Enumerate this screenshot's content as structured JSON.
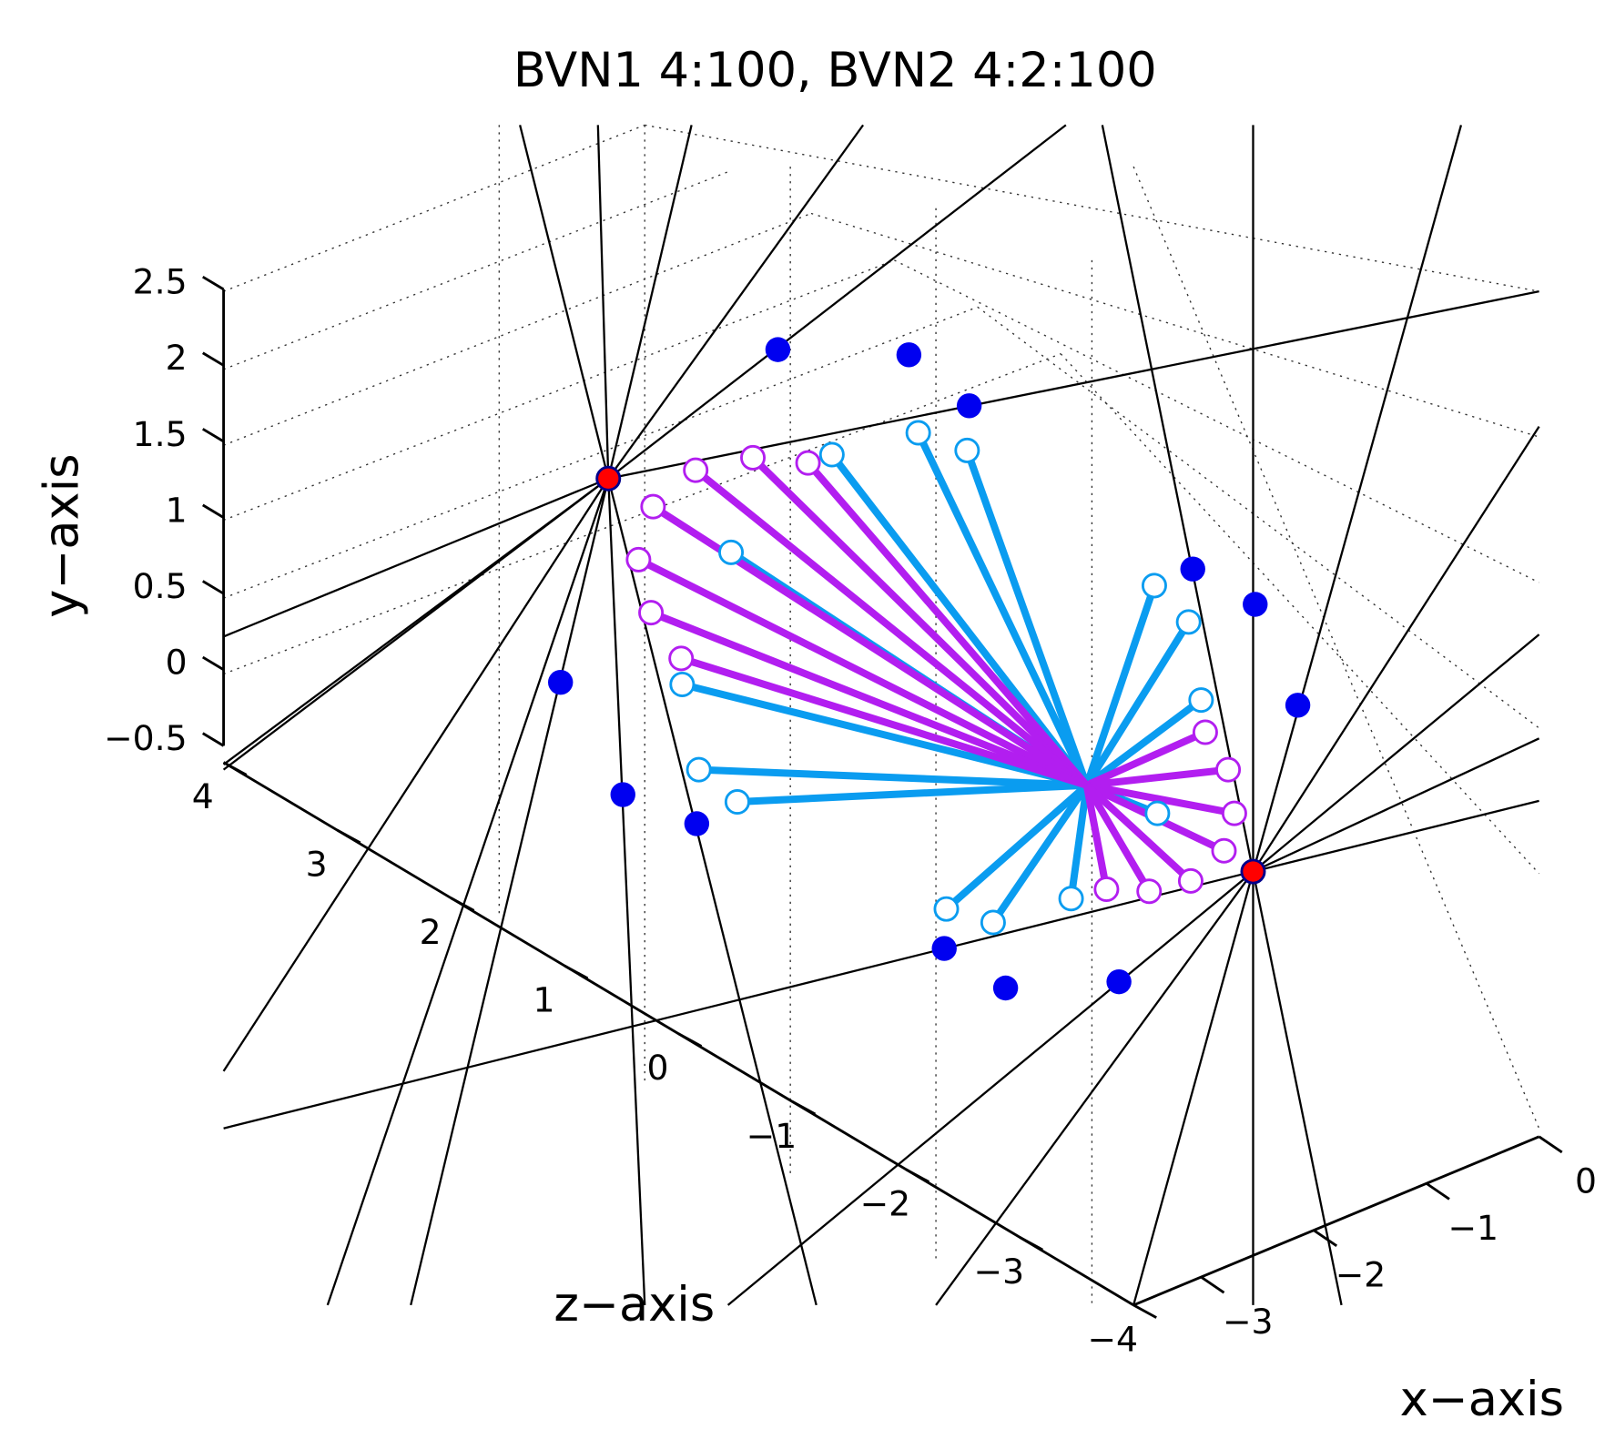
{
  "chart_data": {
    "type": "line3d",
    "title": "BVN1 4:100, BVN2 4:2:100",
    "xlabel": "x−axis",
    "ylabel": "y−axis",
    "zlabel": "z−axis",
    "xlim": [
      -3.6,
      0
    ],
    "xticks": [
      {
        "value": -3,
        "label": "−3"
      },
      {
        "value": -2,
        "label": "−2"
      },
      {
        "value": -1,
        "label": "−1"
      },
      0
    ],
    "ylim": [
      -0.5,
      2.5
    ],
    "yticks": [
      {
        "value": -0.5,
        "label": "−0.5"
      },
      0,
      0.5,
      1,
      1.5,
      2,
      2.5
    ],
    "zlim": [
      -4,
      4
    ],
    "zticks": [
      {
        "value": -4,
        "label": "−4"
      },
      {
        "value": -3,
        "label": "−3"
      },
      {
        "value": -2,
        "label": "−2"
      },
      {
        "value": -1,
        "label": "−1"
      },
      0,
      1,
      2,
      3,
      4
    ]
  }
}
